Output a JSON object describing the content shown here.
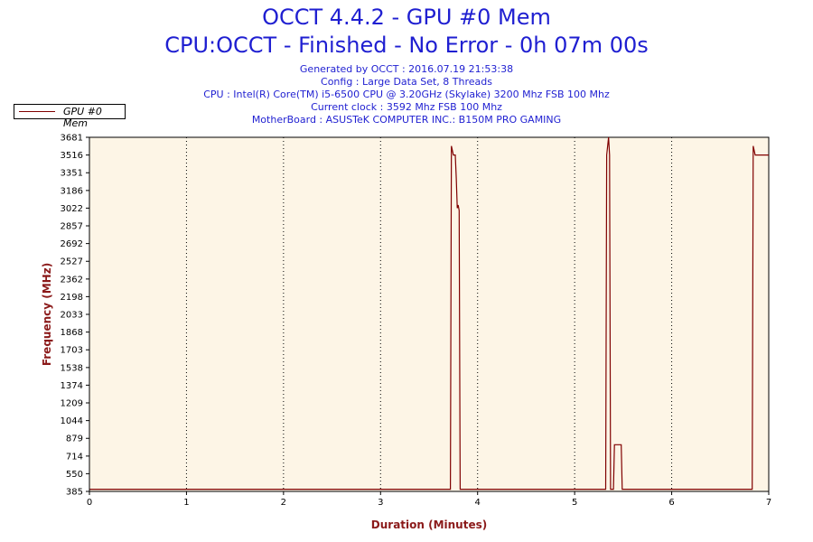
{
  "header": {
    "title": "OCCT 4.4.2 - GPU #0 Mem",
    "subtitle": "CPU:OCCT - Finished - No Error - 0h 07m 00s",
    "info_lines": [
      "Generated by OCCT : 2016.07.19 21:53:38",
      "Config : Large Data Set, 8 Threads",
      "CPU : Intel(R) Core(TM) i5-6500 CPU @ 3.20GHz (Skylake) 3200 Mhz FSB 100 Mhz",
      "Current clock : 3592 Mhz FSB 100 Mhz",
      "MotherBoard : ASUSTeK COMPUTER INC.: B150M PRO GAMING"
    ]
  },
  "legend": {
    "label": "GPU #0 Mem"
  },
  "colors": {
    "title": "#1f1fd1",
    "plot_background": "#fdf5e6",
    "series": "#800000",
    "axis_title": "#8b1a1a"
  },
  "chart_data": {
    "type": "line",
    "xlabel": "Duration (Minutes)",
    "ylabel": "Frequency (MHz)",
    "xlim": [
      0,
      7
    ],
    "ylim": [
      385,
      3681
    ],
    "x_ticks": [
      0,
      1,
      2,
      3,
      4,
      5,
      6,
      7
    ],
    "y_ticks": [
      385,
      550,
      714,
      879,
      1044,
      1209,
      1374,
      1538,
      1703,
      1868,
      2033,
      2198,
      2362,
      2527,
      2692,
      2857,
      3022,
      3186,
      3351,
      3516,
      3681
    ],
    "grid": "vertical-dotted",
    "legend_position": "top-left",
    "series": [
      {
        "name": "GPU #0 Mem",
        "x": [
          0,
          3.72,
          3.73,
          3.75,
          3.77,
          3.78,
          3.79,
          3.8,
          3.81,
          3.82,
          3.84,
          5.32,
          5.33,
          5.35,
          5.36,
          5.37,
          5.4,
          5.41,
          5.48,
          5.49,
          5.5,
          6.83,
          6.84,
          6.86,
          6.87,
          7.0
        ],
        "y": [
          405,
          405,
          3600,
          3516,
          3516,
          3300,
          3022,
          3050,
          3000,
          405,
          405,
          405,
          3516,
          3681,
          3516,
          405,
          405,
          820,
          820,
          405,
          405,
          405,
          3600,
          3516,
          3516,
          3516
        ]
      }
    ]
  }
}
